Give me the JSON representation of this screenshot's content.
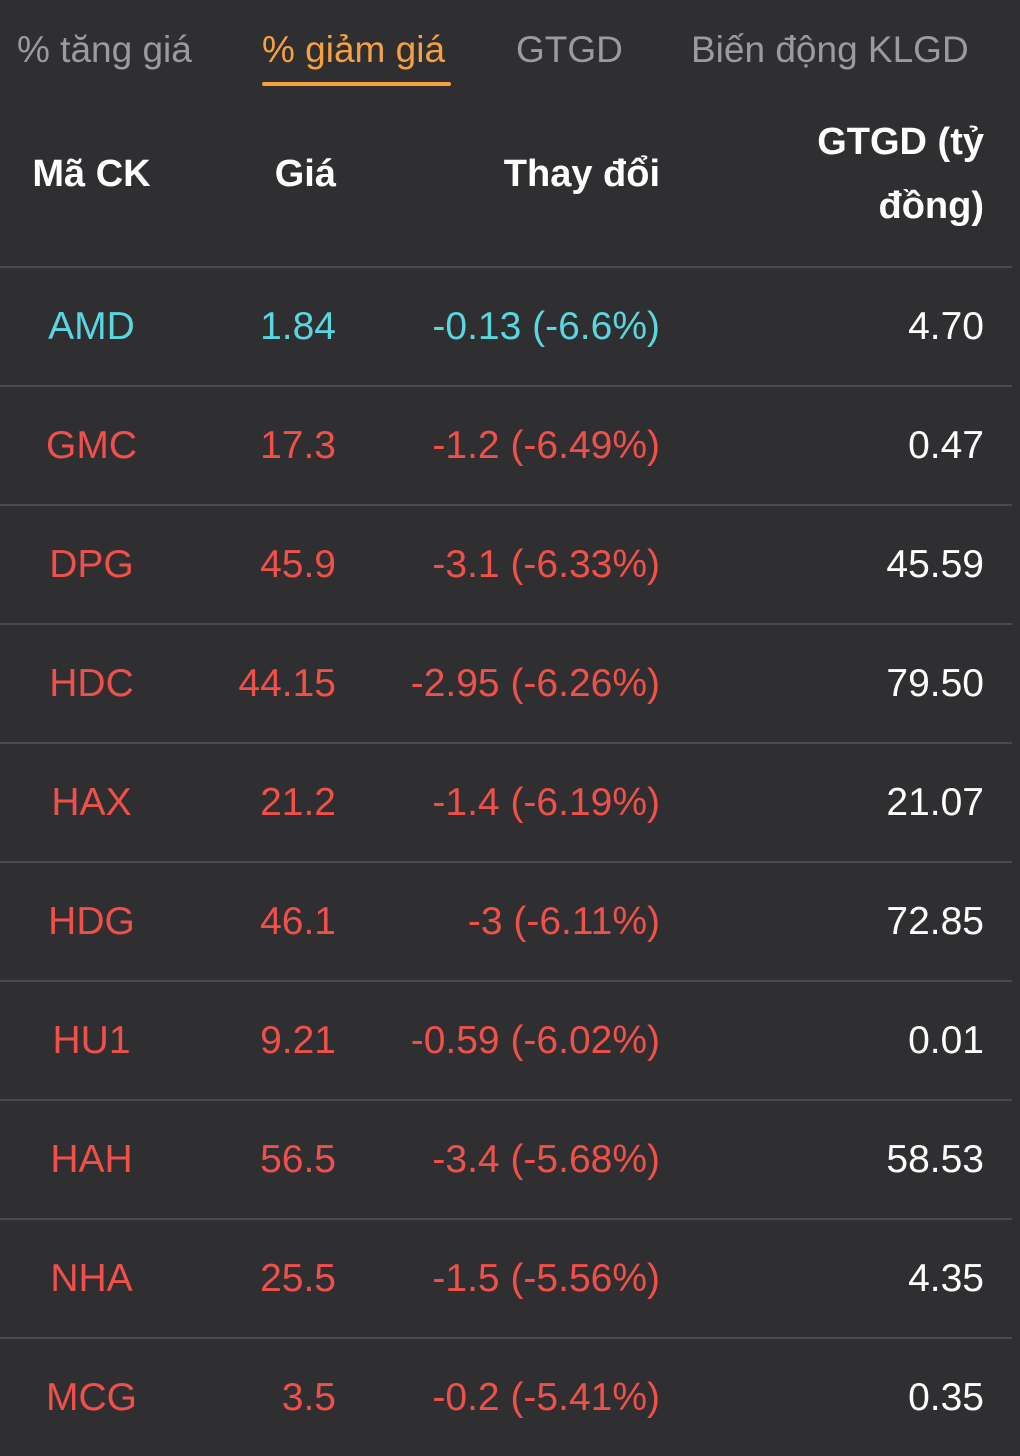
{
  "tabs": [
    {
      "label": "% tăng giá",
      "active": false
    },
    {
      "label": "% giảm giá",
      "active": true
    },
    {
      "label": "GTGD",
      "active": false
    },
    {
      "label": "Biến động KLGD",
      "active": false
    }
  ],
  "header": {
    "code": "Mã CK",
    "price": "Giá",
    "change": "Thay đổi",
    "value_line1": "GTGD (tỷ",
    "value_line2": "đồng)"
  },
  "colors": {
    "accent": "#f5a142",
    "down": "#f0504a",
    "floor": "#5ad6df",
    "text": "#ffffff",
    "background": "#2f2f31"
  },
  "rows": [
    {
      "code": "AMD",
      "price": "1.84",
      "change": "-0.13 (-6.6%)",
      "value": "4.70",
      "status": "floor"
    },
    {
      "code": "GMC",
      "price": "17.3",
      "change": "-1.2 (-6.49%)",
      "value": "0.47",
      "status": "down"
    },
    {
      "code": "DPG",
      "price": "45.9",
      "change": "-3.1 (-6.33%)",
      "value": "45.59",
      "status": "down"
    },
    {
      "code": "HDC",
      "price": "44.15",
      "change": "-2.95 (-6.26%)",
      "value": "79.50",
      "status": "down"
    },
    {
      "code": "HAX",
      "price": "21.2",
      "change": "-1.4 (-6.19%)",
      "value": "21.07",
      "status": "down"
    },
    {
      "code": "HDG",
      "price": "46.1",
      "change": "-3 (-6.11%)",
      "value": "72.85",
      "status": "down"
    },
    {
      "code": "HU1",
      "price": "9.21",
      "change": "-0.59 (-6.02%)",
      "value": "0.01",
      "status": "down"
    },
    {
      "code": "HAH",
      "price": "56.5",
      "change": "-3.4 (-5.68%)",
      "value": "58.53",
      "status": "down"
    },
    {
      "code": "NHA",
      "price": "25.5",
      "change": "-1.5 (-5.56%)",
      "value": "4.35",
      "status": "down"
    },
    {
      "code": "MCG",
      "price": "3.5",
      "change": "-0.2 (-5.41%)",
      "value": "0.35",
      "status": "down"
    }
  ]
}
